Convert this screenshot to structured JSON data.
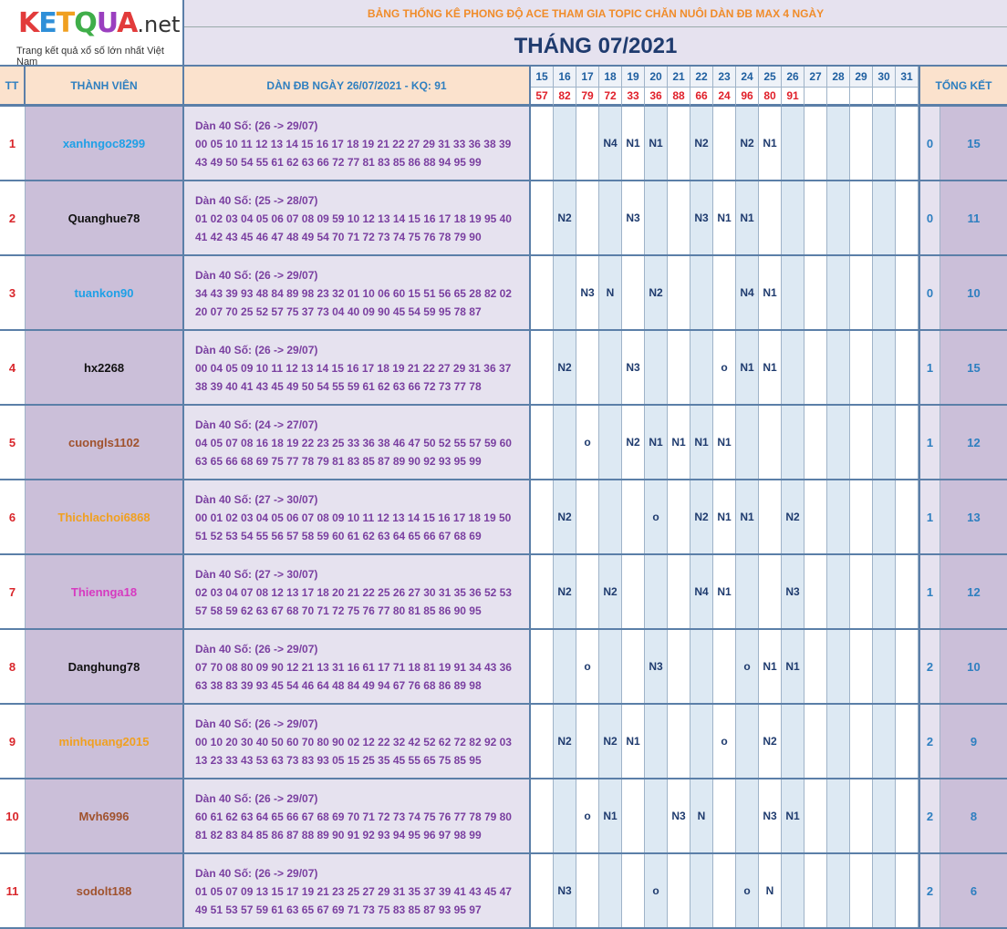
{
  "logo": {
    "text_parts": [
      "K",
      "E",
      "T",
      "Q",
      "U",
      "A"
    ],
    "suffix": ".net",
    "tagline": "Trang kết quả xổ số lớn nhất Việt Nam"
  },
  "title": "BẢNG THỐNG KÊ PHONG ĐỘ ACE THAM GIA TOPIC CHĂN NUÔI DÀN ĐB MAX 4 NGÀY",
  "month": "THÁNG 07/2021",
  "headers": {
    "tt": "TT",
    "member": "THÀNH VIÊN",
    "dan": "DÀN ĐB NGÀY 26/07/2021 - KQ: 91",
    "total": "TỔNG KẾT"
  },
  "days": [
    "15",
    "16",
    "17",
    "18",
    "19",
    "20",
    "21",
    "22",
    "23",
    "24",
    "25",
    "26",
    "27",
    "28",
    "29",
    "30",
    "31"
  ],
  "results": [
    "57",
    "82",
    "79",
    "72",
    "33",
    "36",
    "88",
    "66",
    "24",
    "96",
    "80",
    "91",
    "",
    "",
    "",
    "",
    ""
  ],
  "colors": {
    "border": "#5b7fa8",
    "name_bg": "#cbbfd9",
    "dan_bg": "#e6e2ef",
    "header_bg": "#fbe2cd",
    "title_orange": "#f08c2a",
    "result_red": "#e0202a"
  },
  "rows": [
    {
      "tt": "1",
      "name": "xanhngoc8299",
      "color": "#1fa0e6",
      "dan_title": "Dàn 40 Số: (26 -> 29/07)",
      "dan_line1": "00 05 10 11 12 13 14 15 16 17 18 19 21 22 27 29 31 33 36 38 39",
      "dan_line2": "43 49 50 54 55 61 62 63 66 72 77 81 83 85 86 88 94 95 99",
      "marks": [
        "",
        "",
        "",
        "N4",
        "N1",
        "N1",
        "",
        "N2",
        "",
        "N2",
        "N1",
        "",
        "",
        "",
        "",
        "",
        ""
      ],
      "tot1": "0",
      "tot2": "15"
    },
    {
      "tt": "2",
      "name": "Quanghue78",
      "color": "#111111",
      "dan_title": "Dàn 40 Số: (25 -> 28/07)",
      "dan_line1": "01 02 03 04 05 06 07 08 09 59 10 12 13 14 15 16 17 18 19 95 40",
      "dan_line2": "41 42 43 45 46 47 48 49 54 70 71 72 73 74 75 76 78 79 90",
      "marks": [
        "",
        "N2",
        "",
        "",
        "N3",
        "",
        "",
        "N3",
        "N1",
        "N1",
        "",
        "",
        "",
        "",
        "",
        "",
        ""
      ],
      "tot1": "0",
      "tot2": "11"
    },
    {
      "tt": "3",
      "name": "tuankon90",
      "color": "#1fa0e6",
      "dan_title": "Dàn 40 Số: (26 -> 29/07)",
      "dan_line1": "34 43 39 93 48 84 89 98 23 32 01 10 06 60 15 51 56 65 28 82 02",
      "dan_line2": "20 07 70 25 52 57 75 37 73 04 40 09 90 45 54 59 95 78 87",
      "marks": [
        "",
        "",
        "N3",
        "N",
        "",
        "N2",
        "",
        "",
        "",
        "N4",
        "N1",
        "",
        "",
        "",
        "",
        "",
        ""
      ],
      "tot1": "0",
      "tot2": "10"
    },
    {
      "tt": "4",
      "name": "hx2268",
      "color": "#111111",
      "dan_title": "Dàn 40 Số: (26 -> 29/07)",
      "dan_line1": "00 04 05 09 10 11 12 13 14 15 16 17 18 19 21 22 27 29 31 36 37",
      "dan_line2": "38 39 40 41 43 45 49 50 54 55 59 61 62 63 66 72 73 77 78",
      "marks": [
        "",
        "N2",
        "",
        "",
        "N3",
        "",
        "",
        "",
        "o",
        "N1",
        "N1",
        "",
        "",
        "",
        "",
        "",
        ""
      ],
      "tot1": "1",
      "tot2": "15"
    },
    {
      "tt": "5",
      "name": "cuongls1102",
      "color": "#a0522d",
      "dan_title": "Dàn 40 Số: (24 -> 27/07)",
      "dan_line1": "04 05 07 08 16 18 19 22 23 25 33 36 38 46 47 50 52 55 57 59 60",
      "dan_line2": "63 65 66 68 69 75 77 78 79 81 83 85 87 89 90 92 93 95 99",
      "marks": [
        "",
        "",
        "o",
        "",
        "N2",
        "N1",
        "N1",
        "N1",
        "N1",
        "",
        "",
        "",
        "",
        "",
        "",
        "",
        ""
      ],
      "tot1": "1",
      "tot2": "12"
    },
    {
      "tt": "6",
      "name": "Thichlachoi6868",
      "color": "#f0a020",
      "dan_title": "Dàn 40 Số: (27 -> 30/07)",
      "dan_line1": "00 01 02 03 04 05 06 07 08 09 10 11 12 13 14 15 16 17 18 19 50",
      "dan_line2": "51 52 53 54 55 56 57 58 59 60 61 62 63 64 65 66 67 68 69",
      "marks": [
        "",
        "N2",
        "",
        "",
        "",
        "o",
        "",
        "N2",
        "N1",
        "N1",
        "",
        "N2",
        "",
        "",
        "",
        "",
        ""
      ],
      "tot1": "1",
      "tot2": "13"
    },
    {
      "tt": "7",
      "name": "Thiennga18",
      "color": "#d63ac0",
      "dan_title": "Dàn 40 Số: (27 -> 30/07)",
      "dan_line1": "02 03 04 07 08 12 13 17 18 20 21 22 25 26 27 30 31 35 36 52 53",
      "dan_line2": "57 58 59 62 63 67 68 70 71 72 75 76 77 80 81 85 86 90 95",
      "marks": [
        "",
        "N2",
        "",
        "N2",
        "",
        "",
        "",
        "N4",
        "N1",
        "",
        "",
        "N3",
        "",
        "",
        "",
        "",
        ""
      ],
      "tot1": "1",
      "tot2": "12"
    },
    {
      "tt": "8",
      "name": "Danghung78",
      "color": "#111111",
      "dan_title": "Dàn 40 Số: (26 -> 29/07)",
      "dan_line1": "07 70 08 80 09 90 12 21 13 31 16 61 17 71 18 81 19 91 34 43 36",
      "dan_line2": "63 38 83 39 93 45 54 46 64 48 84 49 94 67 76 68 86 89 98",
      "marks": [
        "",
        "",
        "o",
        "",
        "",
        "N3",
        "",
        "",
        "",
        "o",
        "N1",
        "N1",
        "",
        "",
        "",
        "",
        ""
      ],
      "tot1": "2",
      "tot2": "10"
    },
    {
      "tt": "9",
      "name": "minhquang2015",
      "color": "#f0a020",
      "dan_title": "Dàn 40 Số: (26 -> 29/07)",
      "dan_line1": "00 10 20 30 40 50 60 70 80 90 02 12 22 32 42 52 62 72 82 92 03",
      "dan_line2": "13 23 33 43 53 63 73 83 93 05 15 25 35 45 55 65 75 85 95",
      "marks": [
        "",
        "N2",
        "",
        "N2",
        "N1",
        "",
        "",
        "",
        "o",
        "",
        "N2",
        "",
        "",
        "",
        "",
        "",
        ""
      ],
      "tot1": "2",
      "tot2": "9"
    },
    {
      "tt": "10",
      "name": "Mvh6996",
      "color": "#a0522d",
      "dan_title": "Dàn 40 Số: (26 -> 29/07)",
      "dan_line1": "60 61 62 63 64 65 66 67 68 69 70 71 72 73 74 75 76 77 78 79 80",
      "dan_line2": "81 82 83 84 85 86 87 88 89 90 91 92 93 94 95 96 97 98 99",
      "marks": [
        "",
        "",
        "o",
        "N1",
        "",
        "",
        "N3",
        "N",
        "",
        "",
        "N3",
        "N1",
        "",
        "",
        "",
        "",
        ""
      ],
      "tot1": "2",
      "tot2": "8"
    },
    {
      "tt": "11",
      "name": "sodolt188",
      "color": "#a0522d",
      "dan_title": "Dàn 40 Số: (26 -> 29/07)",
      "dan_line1": "01 05 07 09 13 15 17 19 21 23 25 27 29 31 35 37 39 41 43 45 47",
      "dan_line2": "49 51 53 57 59 61 63 65 67 69 71 73 75 83 85 87 93 95 97",
      "marks": [
        "",
        "N3",
        "",
        "",
        "",
        "o",
        "",
        "",
        "",
        "o",
        "N",
        "",
        "",
        "",
        "",
        "",
        ""
      ],
      "tot1": "2",
      "tot2": "6"
    }
  ]
}
